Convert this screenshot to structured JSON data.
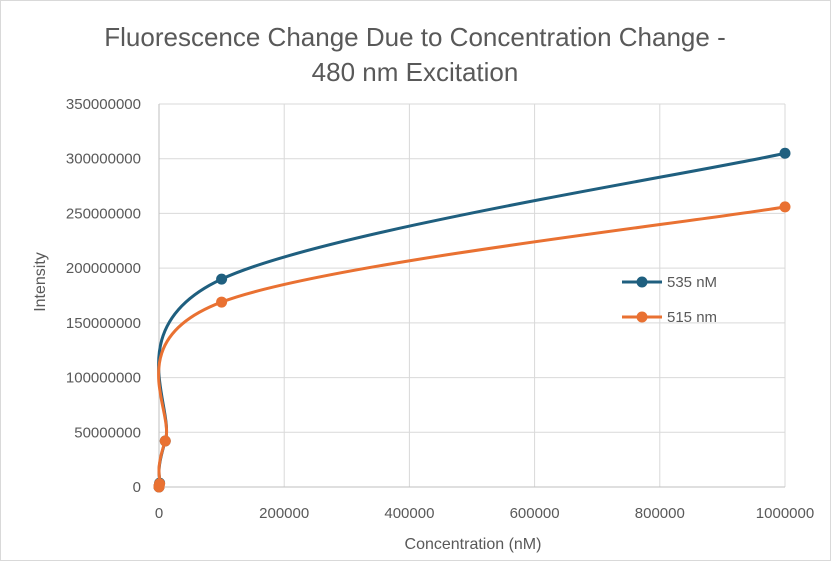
{
  "chart_data": {
    "type": "scatter",
    "title_lines": [
      "Fluorescence Change Due to Concentration Change -",
      "480 nm Excitation"
    ],
    "xlabel": "Concentration (nM)",
    "ylabel": "Intensity",
    "xlim": [
      0,
      1000000
    ],
    "ylim": [
      0,
      350000000
    ],
    "x_ticks": [
      0,
      200000,
      400000,
      600000,
      800000,
      1000000
    ],
    "y_ticks": [
      0,
      50000000,
      100000000,
      150000000,
      200000000,
      250000000,
      300000000,
      350000000
    ],
    "x_tick_labels": [
      "0",
      "200000",
      "400000",
      "600000",
      "800000",
      "1000000"
    ],
    "y_tick_labels": [
      "0",
      "50000000",
      "100000000",
      "150000000",
      "200000000",
      "250000000",
      "300000000",
      "350000000"
    ],
    "grid": true,
    "smooth_lines": true,
    "legend_position": "right",
    "series": [
      {
        "name": "535 nM",
        "color": "#1f5f7f",
        "x": [
          1,
          10,
          100,
          1000,
          10000,
          100000,
          1000000
        ],
        "y": [
          50000,
          500000,
          900000,
          3500000,
          42000000,
          190000000,
          305000000
        ]
      },
      {
        "name": "515 nm",
        "color": "#e97132",
        "x": [
          1,
          10,
          100,
          1000,
          10000,
          100000,
          1000000
        ],
        "y": [
          50000,
          450000,
          800000,
          3000000,
          42000000,
          169000000,
          256000000
        ]
      }
    ]
  }
}
